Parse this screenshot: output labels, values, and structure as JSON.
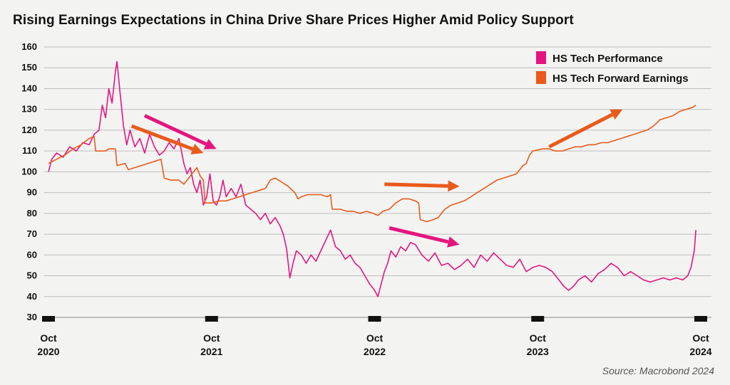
{
  "colors": {
    "performance": "#e5157f",
    "earnings": "#ea5a1a",
    "grid": "#bdbdbd",
    "background": "#f3f4f2"
  },
  "chart_data": {
    "type": "line",
    "title": "Rising Earnings Expectations in China Drive Share Prices Higher Amid Policy Support",
    "source": "Source: Macrobond 2024",
    "ylim": [
      30,
      160
    ],
    "yticks": [
      30,
      40,
      50,
      60,
      70,
      80,
      90,
      100,
      110,
      120,
      130,
      140,
      150,
      160
    ],
    "xlim": [
      2020.75,
      2024.78
    ],
    "xticks": [
      {
        "value": 2020.75,
        "month": "Oct",
        "year": "2020"
      },
      {
        "value": 2021.75,
        "month": "Oct",
        "year": "2021"
      },
      {
        "value": 2022.75,
        "month": "Oct",
        "year": "2022"
      },
      {
        "value": 2023.75,
        "month": "Oct",
        "year": "2023"
      },
      {
        "value": 2024.75,
        "month": "Oct",
        "year": "2024"
      }
    ],
    "grid": true,
    "legend_position": "top-right",
    "series": [
      {
        "name": "HS Tech Performance",
        "color": "#e5157f",
        "points": [
          [
            2020.75,
            100
          ],
          [
            2020.77,
            106
          ],
          [
            2020.8,
            109
          ],
          [
            2020.84,
            107
          ],
          [
            2020.88,
            112
          ],
          [
            2020.92,
            110
          ],
          [
            2020.96,
            114
          ],
          [
            2021.0,
            113
          ],
          [
            2021.03,
            118
          ],
          [
            2021.06,
            120
          ],
          [
            2021.08,
            132
          ],
          [
            2021.1,
            126
          ],
          [
            2021.12,
            140
          ],
          [
            2021.14,
            133
          ],
          [
            2021.16,
            148
          ],
          [
            2021.17,
            153
          ],
          [
            2021.19,
            137
          ],
          [
            2021.21,
            122
          ],
          [
            2021.23,
            113
          ],
          [
            2021.25,
            120
          ],
          [
            2021.28,
            112
          ],
          [
            2021.31,
            116
          ],
          [
            2021.34,
            109
          ],
          [
            2021.37,
            118
          ],
          [
            2021.4,
            112
          ],
          [
            2021.43,
            108
          ],
          [
            2021.46,
            110
          ],
          [
            2021.49,
            114
          ],
          [
            2021.52,
            111
          ],
          [
            2021.55,
            116
          ],
          [
            2021.58,
            104
          ],
          [
            2021.6,
            99
          ],
          [
            2021.62,
            102
          ],
          [
            2021.64,
            94
          ],
          [
            2021.66,
            90
          ],
          [
            2021.68,
            96
          ],
          [
            2021.7,
            84
          ],
          [
            2021.72,
            88
          ],
          [
            2021.74,
            99
          ],
          [
            2021.76,
            86
          ],
          [
            2021.78,
            84
          ],
          [
            2021.8,
            88
          ],
          [
            2021.82,
            96
          ],
          [
            2021.84,
            88
          ],
          [
            2021.87,
            92
          ],
          [
            2021.9,
            88
          ],
          [
            2021.93,
            94
          ],
          [
            2021.96,
            84
          ],
          [
            2021.99,
            82
          ],
          [
            2022.02,
            80
          ],
          [
            2022.05,
            77
          ],
          [
            2022.08,
            80
          ],
          [
            2022.11,
            75
          ],
          [
            2022.14,
            78
          ],
          [
            2022.17,
            74
          ],
          [
            2022.19,
            70
          ],
          [
            2022.21,
            63
          ],
          [
            2022.23,
            49
          ],
          [
            2022.25,
            56
          ],
          [
            2022.27,
            62
          ],
          [
            2022.3,
            60
          ],
          [
            2022.33,
            56
          ],
          [
            2022.36,
            60
          ],
          [
            2022.39,
            57
          ],
          [
            2022.42,
            62
          ],
          [
            2022.45,
            67
          ],
          [
            2022.48,
            72
          ],
          [
            2022.51,
            64
          ],
          [
            2022.54,
            62
          ],
          [
            2022.57,
            58
          ],
          [
            2022.6,
            60
          ],
          [
            2022.63,
            56
          ],
          [
            2022.66,
            54
          ],
          [
            2022.69,
            50
          ],
          [
            2022.72,
            46
          ],
          [
            2022.75,
            43
          ],
          [
            2022.77,
            40
          ],
          [
            2022.79,
            46
          ],
          [
            2022.81,
            52
          ],
          [
            2022.83,
            56
          ],
          [
            2022.85,
            62
          ],
          [
            2022.88,
            59
          ],
          [
            2022.91,
            64
          ],
          [
            2022.94,
            62
          ],
          [
            2022.97,
            66
          ],
          [
            2023.0,
            65
          ],
          [
            2023.04,
            60
          ],
          [
            2023.08,
            57
          ],
          [
            2023.12,
            61
          ],
          [
            2023.16,
            55
          ],
          [
            2023.2,
            56
          ],
          [
            2023.24,
            53
          ],
          [
            2023.28,
            55
          ],
          [
            2023.32,
            58
          ],
          [
            2023.36,
            54
          ],
          [
            2023.4,
            60
          ],
          [
            2023.44,
            57
          ],
          [
            2023.48,
            61
          ],
          [
            2023.52,
            58
          ],
          [
            2023.56,
            55
          ],
          [
            2023.6,
            54
          ],
          [
            2023.64,
            58
          ],
          [
            2023.68,
            52
          ],
          [
            2023.72,
            54
          ],
          [
            2023.76,
            55
          ],
          [
            2023.8,
            54
          ],
          [
            2023.84,
            52
          ],
          [
            2023.88,
            48
          ],
          [
            2023.91,
            45
          ],
          [
            2023.94,
            43
          ],
          [
            2023.97,
            45
          ],
          [
            2024.0,
            48
          ],
          [
            2024.04,
            50
          ],
          [
            2024.08,
            47
          ],
          [
            2024.12,
            51
          ],
          [
            2024.16,
            53
          ],
          [
            2024.2,
            56
          ],
          [
            2024.24,
            54
          ],
          [
            2024.28,
            50
          ],
          [
            2024.32,
            52
          ],
          [
            2024.36,
            50
          ],
          [
            2024.4,
            48
          ],
          [
            2024.44,
            47
          ],
          [
            2024.48,
            48
          ],
          [
            2024.52,
            49
          ],
          [
            2024.56,
            48
          ],
          [
            2024.6,
            49
          ],
          [
            2024.64,
            48
          ],
          [
            2024.67,
            50
          ],
          [
            2024.69,
            54
          ],
          [
            2024.71,
            62
          ],
          [
            2024.72,
            72
          ]
        ]
      },
      {
        "name": "HS Tech Forward Earnings",
        "color": "#ea5a1a",
        "points": [
          [
            2020.75,
            104
          ],
          [
            2020.8,
            106
          ],
          [
            2020.85,
            108
          ],
          [
            2020.9,
            111
          ],
          [
            2020.95,
            113
          ],
          [
            2021.0,
            116
          ],
          [
            2021.03,
            117
          ],
          [
            2021.04,
            110
          ],
          [
            2021.1,
            110
          ],
          [
            2021.12,
            111
          ],
          [
            2021.16,
            111
          ],
          [
            2021.17,
            103
          ],
          [
            2021.22,
            104
          ],
          [
            2021.24,
            101
          ],
          [
            2021.28,
            102
          ],
          [
            2021.32,
            103
          ],
          [
            2021.36,
            104
          ],
          [
            2021.4,
            105
          ],
          [
            2021.44,
            106
          ],
          [
            2021.46,
            97
          ],
          [
            2021.5,
            96
          ],
          [
            2021.55,
            96
          ],
          [
            2021.58,
            94
          ],
          [
            2021.62,
            98
          ],
          [
            2021.66,
            102
          ],
          [
            2021.68,
            98
          ],
          [
            2021.7,
            96
          ],
          [
            2021.71,
            85
          ],
          [
            2021.75,
            85
          ],
          [
            2021.8,
            86
          ],
          [
            2021.84,
            86
          ],
          [
            2021.88,
            87
          ],
          [
            2021.92,
            88
          ],
          [
            2021.96,
            89
          ],
          [
            2022.0,
            90
          ],
          [
            2022.04,
            91
          ],
          [
            2022.08,
            92
          ],
          [
            2022.11,
            96
          ],
          [
            2022.14,
            97
          ],
          [
            2022.18,
            95
          ],
          [
            2022.22,
            93
          ],
          [
            2022.26,
            90
          ],
          [
            2022.28,
            87
          ],
          [
            2022.3,
            88
          ],
          [
            2022.34,
            89
          ],
          [
            2022.38,
            89
          ],
          [
            2022.42,
            89
          ],
          [
            2022.46,
            88
          ],
          [
            2022.48,
            89
          ],
          [
            2022.49,
            82
          ],
          [
            2022.54,
            82
          ],
          [
            2022.58,
            81
          ],
          [
            2022.62,
            81
          ],
          [
            2022.66,
            80
          ],
          [
            2022.7,
            81
          ],
          [
            2022.74,
            80
          ],
          [
            2022.77,
            79
          ],
          [
            2022.8,
            81
          ],
          [
            2022.84,
            82
          ],
          [
            2022.88,
            85
          ],
          [
            2022.92,
            87
          ],
          [
            2022.96,
            87
          ],
          [
            2023.0,
            86
          ],
          [
            2023.02,
            85
          ],
          [
            2023.03,
            77
          ],
          [
            2023.07,
            76
          ],
          [
            2023.11,
            77
          ],
          [
            2023.14,
            78
          ],
          [
            2023.18,
            82
          ],
          [
            2023.22,
            84
          ],
          [
            2023.26,
            85
          ],
          [
            2023.3,
            86
          ],
          [
            2023.34,
            88
          ],
          [
            2023.38,
            90
          ],
          [
            2023.42,
            92
          ],
          [
            2023.46,
            94
          ],
          [
            2023.5,
            96
          ],
          [
            2023.54,
            97
          ],
          [
            2023.58,
            98
          ],
          [
            2023.62,
            99
          ],
          [
            2023.66,
            103
          ],
          [
            2023.68,
            104
          ],
          [
            2023.7,
            108
          ],
          [
            2023.72,
            110
          ],
          [
            2023.78,
            111
          ],
          [
            2023.82,
            111
          ],
          [
            2023.86,
            110
          ],
          [
            2023.9,
            110
          ],
          [
            2023.94,
            111
          ],
          [
            2023.98,
            112
          ],
          [
            2024.02,
            112
          ],
          [
            2024.06,
            113
          ],
          [
            2024.1,
            113
          ],
          [
            2024.14,
            114
          ],
          [
            2024.18,
            114
          ],
          [
            2024.22,
            115
          ],
          [
            2024.26,
            116
          ],
          [
            2024.3,
            117
          ],
          [
            2024.34,
            118
          ],
          [
            2024.38,
            119
          ],
          [
            2024.42,
            120
          ],
          [
            2024.46,
            122
          ],
          [
            2024.5,
            125
          ],
          [
            2024.54,
            126
          ],
          [
            2024.58,
            127
          ],
          [
            2024.62,
            129
          ],
          [
            2024.66,
            130
          ],
          [
            2024.7,
            131
          ],
          [
            2024.72,
            132
          ]
        ]
      }
    ],
    "annotations": [
      {
        "type": "arrow",
        "color": "#e5157f",
        "from": [
          2021.34,
          127
        ],
        "to": [
          2021.78,
          111
        ]
      },
      {
        "type": "arrow",
        "color": "#ea5a1a",
        "from": [
          2021.26,
          122
        ],
        "to": [
          2021.7,
          109
        ]
      },
      {
        "type": "arrow",
        "color": "#ea5a1a",
        "from": [
          2022.81,
          94
        ],
        "to": [
          2023.27,
          93
        ]
      },
      {
        "type": "arrow",
        "color": "#e5157f",
        "from": [
          2022.84,
          73
        ],
        "to": [
          2023.27,
          65
        ]
      },
      {
        "type": "arrow",
        "color": "#ea5a1a",
        "from": [
          2023.82,
          112
        ],
        "to": [
          2024.27,
          130
        ]
      }
    ]
  }
}
